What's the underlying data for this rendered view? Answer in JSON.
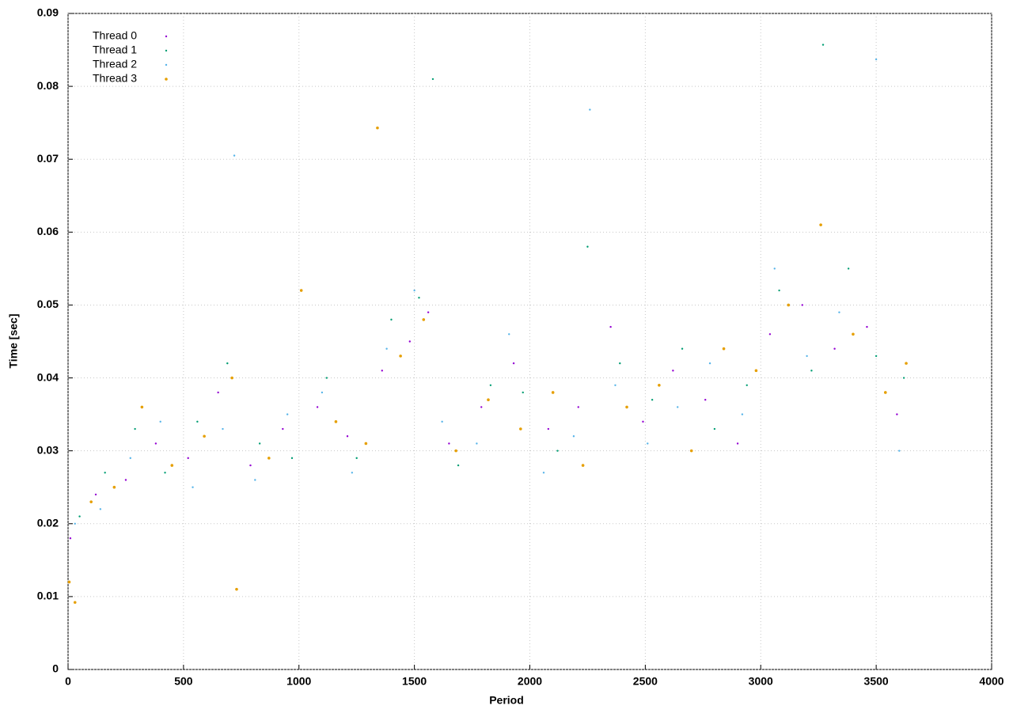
{
  "chart_data": {
    "type": "scatter",
    "x_label": "Period",
    "y_label": "Time [sec]",
    "xlim": [
      0,
      4000
    ],
    "xticks": [
      0,
      500,
      1000,
      1500,
      2000,
      2500,
      3000,
      3500,
      4000
    ],
    "ylim": [
      0,
      0.09
    ],
    "yticks": [
      0,
      0.01,
      0.02,
      0.03,
      0.04,
      0.05,
      0.06,
      0.07,
      0.08,
      0.09
    ],
    "grid": true,
    "legend": "top-left",
    "series": [
      {
        "name": "Thread 0",
        "color": "#9400d3",
        "x": [
          10,
          120,
          250,
          380,
          520,
          650,
          790,
          930,
          1080,
          1210,
          1360,
          1480,
          1560,
          1650,
          1790,
          1930,
          2080,
          2210,
          2350,
          2490,
          2620,
          2760,
          2900,
          3040,
          3180,
          3320,
          3460,
          3590
        ],
        "values": [
          0.018,
          0.024,
          0.026,
          0.031,
          0.029,
          0.038,
          0.028,
          0.033,
          0.036,
          0.032,
          0.041,
          0.045,
          0.049,
          0.031,
          0.036,
          0.042,
          0.033,
          0.036,
          0.047,
          0.034,
          0.041,
          0.037,
          0.031,
          0.046,
          0.05,
          0.044,
          0.047,
          0.035
        ]
      },
      {
        "name": "Thread 1",
        "color": "#009e73",
        "x": [
          50,
          160,
          290,
          420,
          560,
          690,
          830,
          970,
          1120,
          1250,
          1400,
          1520,
          1580,
          1690,
          1830,
          1970,
          2120,
          2250,
          2390,
          2530,
          2660,
          2800,
          2940,
          3080,
          3220,
          3270,
          3380,
          3500,
          3620
        ],
        "values": [
          0.021,
          0.027,
          0.033,
          0.027,
          0.034,
          0.042,
          0.031,
          0.029,
          0.04,
          0.029,
          0.048,
          0.051,
          0.081,
          0.028,
          0.039,
          0.038,
          0.03,
          0.058,
          0.042,
          0.037,
          0.044,
          0.033,
          0.039,
          0.052,
          0.041,
          0.0857,
          0.055,
          0.043,
          0.04
        ]
      },
      {
        "name": "Thread 2",
        "color": "#56b4e9",
        "x": [
          30,
          140,
          270,
          400,
          540,
          670,
          720,
          810,
          950,
          1100,
          1230,
          1380,
          1500,
          1620,
          1770,
          1910,
          2060,
          2190,
          2260,
          2370,
          2510,
          2640,
          2780,
          2920,
          3060,
          3200,
          3340,
          3500,
          3600
        ],
        "values": [
          0.02,
          0.022,
          0.029,
          0.034,
          0.025,
          0.033,
          0.0705,
          0.026,
          0.035,
          0.038,
          0.027,
          0.044,
          0.052,
          0.034,
          0.031,
          0.046,
          0.027,
          0.032,
          0.0768,
          0.039,
          0.031,
          0.036,
          0.042,
          0.035,
          0.055,
          0.043,
          0.049,
          0.0837,
          0.03
        ]
      },
      {
        "name": "Thread 3",
        "color": "#e69f00",
        "x": [
          5,
          30,
          100,
          200,
          320,
          450,
          590,
          710,
          730,
          870,
          1010,
          1160,
          1290,
          1340,
          1440,
          1540,
          1680,
          1820,
          1960,
          2100,
          2230,
          2420,
          2560,
          2700,
          2840,
          2980,
          3120,
          3260,
          3400,
          3540,
          3630
        ],
        "values": [
          0.012,
          0.0092,
          0.023,
          0.025,
          0.036,
          0.028,
          0.032,
          0.04,
          0.011,
          0.029,
          0.052,
          0.034,
          0.031,
          0.0743,
          0.043,
          0.048,
          0.03,
          0.037,
          0.033,
          0.038,
          0.028,
          0.036,
          0.039,
          0.03,
          0.044,
          0.041,
          0.05,
          0.061,
          0.046,
          0.038,
          0.042
        ]
      }
    ]
  }
}
